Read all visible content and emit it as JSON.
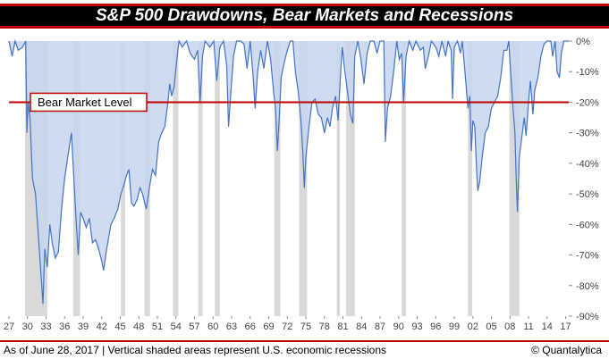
{
  "title": "S&P 500 Drawdowns, Bear Markets and Recessions",
  "footer": {
    "note": "As of June 28, 2017 | Vertical shaded areas represent U.S. economic recessions",
    "credit": "© Quantalytica"
  },
  "colors": {
    "title_bg": "#000000",
    "title_border": "#c00000",
    "area_fill": "#c5d5ee",
    "line": "#4472c4",
    "recession": "#d9d9d9",
    "bear_line": "#c00000"
  },
  "chart_data": {
    "type": "area",
    "title": "S&P 500 Drawdowns, Bear Markets and Recessions",
    "xlabel": "",
    "ylabel": "",
    "xlim": [
      1927,
      2017.5
    ],
    "ylim": [
      -90,
      0
    ],
    "x_ticks": [
      "27",
      "30",
      "33",
      "36",
      "39",
      "42",
      "45",
      "48",
      "51",
      "54",
      "57",
      "60",
      "63",
      "66",
      "69",
      "72",
      "75",
      "78",
      "81",
      "84",
      "87",
      "90",
      "93",
      "96",
      "99",
      "02",
      "05",
      "08",
      "11",
      "14",
      "17"
    ],
    "y_ticks": [
      "0%",
      "-10%",
      "-20%",
      "-30%",
      "-40%",
      "-50%",
      "-60%",
      "-70%",
      "-80%",
      "-90%"
    ],
    "y_tick_values": [
      0,
      -10,
      -20,
      -30,
      -40,
      -50,
      -60,
      -70,
      -80,
      -90
    ],
    "grid": false,
    "bear_market_level": {
      "value": -20,
      "label": "Bear Market Level"
    },
    "recessions": [
      [
        1929.6,
        1933.2
      ],
      [
        1937.4,
        1938.5
      ],
      [
        1945.1,
        1945.8
      ],
      [
        1948.9,
        1949.8
      ],
      [
        1953.5,
        1954.4
      ],
      [
        1957.6,
        1958.3
      ],
      [
        1960.3,
        1961.1
      ],
      [
        1969.9,
        1970.9
      ],
      [
        1973.9,
        1975.2
      ],
      [
        1980.0,
        1980.5
      ],
      [
        1981.5,
        1982.9
      ],
      [
        1990.5,
        1991.2
      ],
      [
        2001.2,
        2001.9
      ],
      [
        2007.9,
        2009.5
      ]
    ],
    "series": [
      {
        "values": [
          [
            1927.0,
            0
          ],
          [
            1927.5,
            -5
          ],
          [
            1928.0,
            0
          ],
          [
            1928.5,
            -3
          ],
          [
            1929.2,
            -2
          ],
          [
            1929.7,
            0
          ],
          [
            1929.9,
            -30
          ],
          [
            1930.1,
            -20
          ],
          [
            1930.4,
            -25
          ],
          [
            1930.8,
            -45
          ],
          [
            1931.3,
            -50
          ],
          [
            1931.8,
            -65
          ],
          [
            1932.3,
            -80
          ],
          [
            1932.5,
            -86
          ],
          [
            1932.8,
            -68
          ],
          [
            1933.2,
            -74
          ],
          [
            1933.6,
            -60
          ],
          [
            1934.0,
            -66
          ],
          [
            1934.5,
            -71
          ],
          [
            1935.0,
            -69
          ],
          [
            1935.5,
            -55
          ],
          [
            1936.0,
            -45
          ],
          [
            1936.5,
            -38
          ],
          [
            1937.1,
            -30
          ],
          [
            1937.5,
            -45
          ],
          [
            1937.9,
            -60
          ],
          [
            1938.2,
            -70
          ],
          [
            1938.6,
            -56
          ],
          [
            1939.0,
            -58
          ],
          [
            1939.5,
            -61
          ],
          [
            1940.0,
            -58
          ],
          [
            1940.5,
            -66
          ],
          [
            1941.0,
            -65
          ],
          [
            1941.5,
            -68
          ],
          [
            1942.0,
            -72
          ],
          [
            1942.3,
            -75
          ],
          [
            1942.8,
            -68
          ],
          [
            1943.5,
            -60
          ],
          [
            1944.0,
            -58
          ],
          [
            1944.6,
            -55
          ],
          [
            1945.1,
            -50
          ],
          [
            1945.6,
            -47
          ],
          [
            1946.0,
            -44
          ],
          [
            1946.4,
            -42
          ],
          [
            1946.8,
            -53
          ],
          [
            1947.2,
            -54
          ],
          [
            1947.7,
            -52
          ],
          [
            1948.2,
            -48
          ],
          [
            1948.6,
            -50
          ],
          [
            1949.2,
            -55
          ],
          [
            1949.7,
            -48
          ],
          [
            1950.2,
            -42
          ],
          [
            1950.7,
            -44
          ],
          [
            1951.2,
            -33
          ],
          [
            1951.7,
            -30
          ],
          [
            1952.2,
            -28
          ],
          [
            1952.7,
            -20
          ],
          [
            1953.0,
            -14
          ],
          [
            1953.3,
            -18
          ],
          [
            1953.7,
            -15
          ],
          [
            1954.2,
            -5
          ],
          [
            1954.5,
            0
          ],
          [
            1955.0,
            -2
          ],
          [
            1955.7,
            0
          ],
          [
            1956.3,
            -4
          ],
          [
            1957.0,
            -6
          ],
          [
            1957.5,
            -3
          ],
          [
            1957.9,
            -20
          ],
          [
            1958.3,
            -5
          ],
          [
            1958.7,
            0
          ],
          [
            1959.5,
            -2
          ],
          [
            1960.1,
            0
          ],
          [
            1960.6,
            -13
          ],
          [
            1961.1,
            -2
          ],
          [
            1961.7,
            0
          ],
          [
            1962.2,
            -8
          ],
          [
            1962.5,
            -28
          ],
          [
            1962.9,
            -16
          ],
          [
            1963.3,
            -5
          ],
          [
            1963.8,
            0
          ],
          [
            1964.5,
            0
          ],
          [
            1965.0,
            -1
          ],
          [
            1965.5,
            -9
          ],
          [
            1966.0,
            0
          ],
          [
            1966.5,
            -12
          ],
          [
            1966.8,
            -22
          ],
          [
            1967.2,
            -10
          ],
          [
            1967.7,
            -3
          ],
          [
            1968.2,
            -9
          ],
          [
            1968.8,
            0
          ],
          [
            1969.3,
            -6
          ],
          [
            1969.8,
            -17
          ],
          [
            1970.1,
            -22
          ],
          [
            1970.4,
            -36
          ],
          [
            1970.7,
            -25
          ],
          [
            1971.0,
            -12
          ],
          [
            1971.5,
            -7
          ],
          [
            1972.0,
            -3
          ],
          [
            1972.5,
            0
          ],
          [
            1972.9,
            0
          ],
          [
            1973.3,
            -10
          ],
          [
            1973.8,
            -17
          ],
          [
            1974.2,
            -26
          ],
          [
            1974.5,
            -36
          ],
          [
            1974.75,
            -48
          ],
          [
            1975.0,
            -38
          ],
          [
            1975.5,
            -28
          ],
          [
            1976.0,
            -20
          ],
          [
            1976.5,
            -19
          ],
          [
            1977.0,
            -24
          ],
          [
            1977.5,
            -25
          ],
          [
            1978.0,
            -30
          ],
          [
            1978.5,
            -25
          ],
          [
            1978.9,
            -28
          ],
          [
            1979.3,
            -22
          ],
          [
            1979.8,
            -18
          ],
          [
            1980.2,
            -26
          ],
          [
            1980.7,
            -8
          ],
          [
            1980.9,
            -2
          ],
          [
            1981.3,
            -10
          ],
          [
            1981.7,
            -16
          ],
          [
            1982.2,
            -24
          ],
          [
            1982.6,
            -27
          ],
          [
            1982.9,
            -5
          ],
          [
            1983.4,
            0
          ],
          [
            1983.9,
            -6
          ],
          [
            1984.4,
            -14
          ],
          [
            1984.9,
            -4
          ],
          [
            1985.4,
            0
          ],
          [
            1986.0,
            0
          ],
          [
            1986.5,
            -4
          ],
          [
            1987.0,
            0
          ],
          [
            1987.6,
            0
          ],
          [
            1987.85,
            -33
          ],
          [
            1988.2,
            -22
          ],
          [
            1988.7,
            -18
          ],
          [
            1989.2,
            -10
          ],
          [
            1989.7,
            0
          ],
          [
            1990.1,
            -6
          ],
          [
            1990.5,
            -4
          ],
          [
            1990.8,
            -20
          ],
          [
            1991.2,
            -5
          ],
          [
            1991.7,
            0
          ],
          [
            1992.3,
            -3
          ],
          [
            1992.8,
            0
          ],
          [
            1993.5,
            -3
          ],
          [
            1994.0,
            -2
          ],
          [
            1994.3,
            -9
          ],
          [
            1994.8,
            -5
          ],
          [
            1995.3,
            0
          ],
          [
            1996.0,
            -2
          ],
          [
            1996.5,
            -5
          ],
          [
            1997.0,
            0
          ],
          [
            1997.6,
            -5
          ],
          [
            1998.0,
            0
          ],
          [
            1998.5,
            -3
          ],
          [
            1998.7,
            -19
          ],
          [
            1999.0,
            -2
          ],
          [
            1999.5,
            0
          ],
          [
            2000.0,
            -4
          ],
          [
            2000.3,
            0
          ],
          [
            2000.8,
            -12
          ],
          [
            2001.2,
            -22
          ],
          [
            2001.5,
            -18
          ],
          [
            2001.75,
            -36
          ],
          [
            2002.0,
            -26
          ],
          [
            2002.3,
            -28
          ],
          [
            2002.6,
            -42
          ],
          [
            2002.8,
            -49
          ],
          [
            2003.1,
            -46
          ],
          [
            2003.5,
            -38
          ],
          [
            2004.0,
            -30
          ],
          [
            2004.5,
            -28
          ],
          [
            2005.0,
            -22
          ],
          [
            2005.5,
            -20
          ],
          [
            2006.0,
            -18
          ],
          [
            2006.5,
            -12
          ],
          [
            2007.0,
            -3
          ],
          [
            2007.5,
            -3
          ],
          [
            2007.8,
            0
          ],
          [
            2008.1,
            -10
          ],
          [
            2008.5,
            -22
          ],
          [
            2008.8,
            -30
          ],
          [
            2009.0,
            -45
          ],
          [
            2009.2,
            -56
          ],
          [
            2009.5,
            -38
          ],
          [
            2010.0,
            -30
          ],
          [
            2010.3,
            -25
          ],
          [
            2010.6,
            -31
          ],
          [
            2011.0,
            -20
          ],
          [
            2011.3,
            -13
          ],
          [
            2011.7,
            -24
          ],
          [
            2012.0,
            -16
          ],
          [
            2012.5,
            -12
          ],
          [
            2013.0,
            -5
          ],
          [
            2013.5,
            -1
          ],
          [
            2014.0,
            0
          ],
          [
            2014.6,
            0
          ],
          [
            2014.9,
            -5
          ],
          [
            2015.3,
            0
          ],
          [
            2015.6,
            -10
          ],
          [
            2016.0,
            -12
          ],
          [
            2016.3,
            -4
          ],
          [
            2016.7,
            0
          ],
          [
            2017.0,
            0
          ],
          [
            2017.5,
            0
          ]
        ]
      }
    ]
  }
}
